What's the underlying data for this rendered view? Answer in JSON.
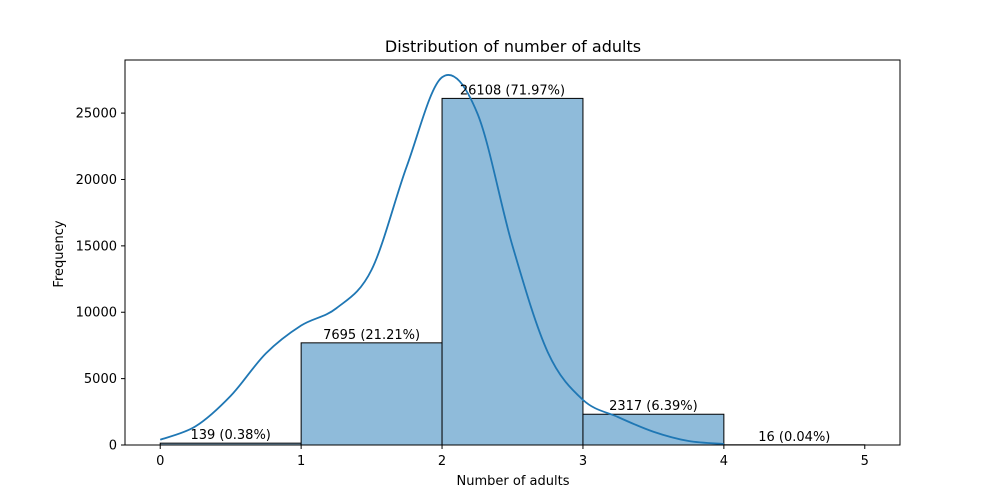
{
  "chart_data": {
    "type": "bar",
    "title": "Distribution of number of adults",
    "xlabel": "Number of adults",
    "ylabel": "Frequency",
    "xlim": [
      -0.25,
      5.25
    ],
    "ylim": [
      0,
      29000
    ],
    "xticks": [
      0,
      1,
      2,
      3,
      4,
      5
    ],
    "yticks": [
      0,
      5000,
      10000,
      15000,
      20000,
      25000
    ],
    "bins": [
      {
        "start": 0,
        "end": 1,
        "value": 139,
        "label": "139 (0.38%)"
      },
      {
        "start": 1,
        "end": 2,
        "value": 7695,
        "label": "7695 (21.21%)"
      },
      {
        "start": 2,
        "end": 3,
        "value": 26108,
        "label": "26108 (71.97%)"
      },
      {
        "start": 3,
        "end": 4,
        "value": 2317,
        "label": "2317 (6.39%)"
      },
      {
        "start": 4,
        "end": 5,
        "value": 16,
        "label": "16 (0.04%)"
      }
    ],
    "kde": {
      "x": [
        0,
        0.25,
        0.5,
        0.75,
        1.0,
        1.25,
        1.5,
        1.75,
        2.0,
        2.25,
        2.5,
        2.75,
        3.0,
        3.25,
        3.5,
        3.75,
        4.0
      ],
      "y": [
        400,
        1400,
        3700,
        6900,
        9000,
        10300,
        13200,
        21000,
        27700,
        25000,
        15000,
        7000,
        3400,
        2100,
        1000,
        300,
        80
      ]
    },
    "colors": {
      "bar_fill": "#8fbbda",
      "bar_edge": "#000000",
      "kde_line": "#1f77b4"
    }
  }
}
